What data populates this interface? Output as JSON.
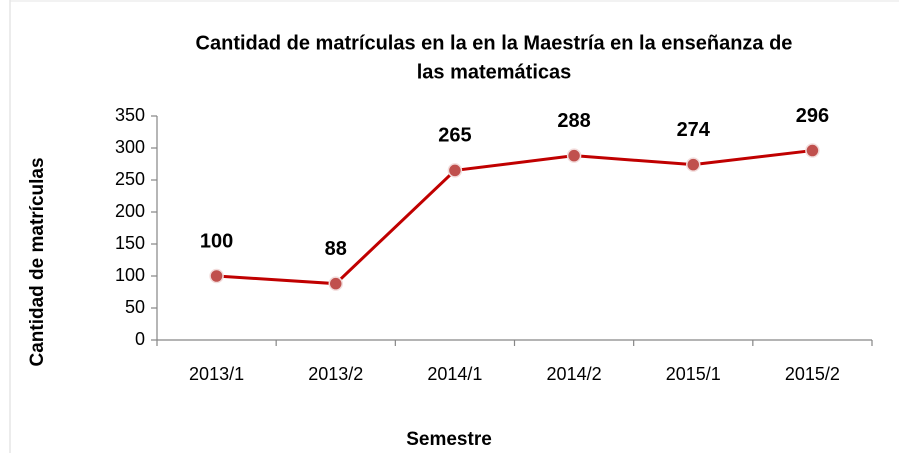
{
  "chart_data": {
    "type": "line",
    "title": [
      "Cantidad de matrículas en la en la Maestría en la enseñanza de",
      "las matemáticas"
    ],
    "xlabel": "Semestre",
    "ylabel": "Cantidad de matrículas",
    "categories": [
      "2013/1",
      "2013/2",
      "2014/1",
      "2014/2",
      "2015/1",
      "2015/2"
    ],
    "series": [
      {
        "name": "Cantidad de matrículas",
        "color": "#c00000",
        "marker_color": "#c0504d",
        "values": [
          100,
          88,
          265,
          288,
          274,
          296
        ]
      }
    ],
    "ylim": [
      0,
      350
    ],
    "yticks": [
      0,
      50,
      100,
      150,
      200,
      250,
      300,
      350
    ],
    "grid": false
  }
}
